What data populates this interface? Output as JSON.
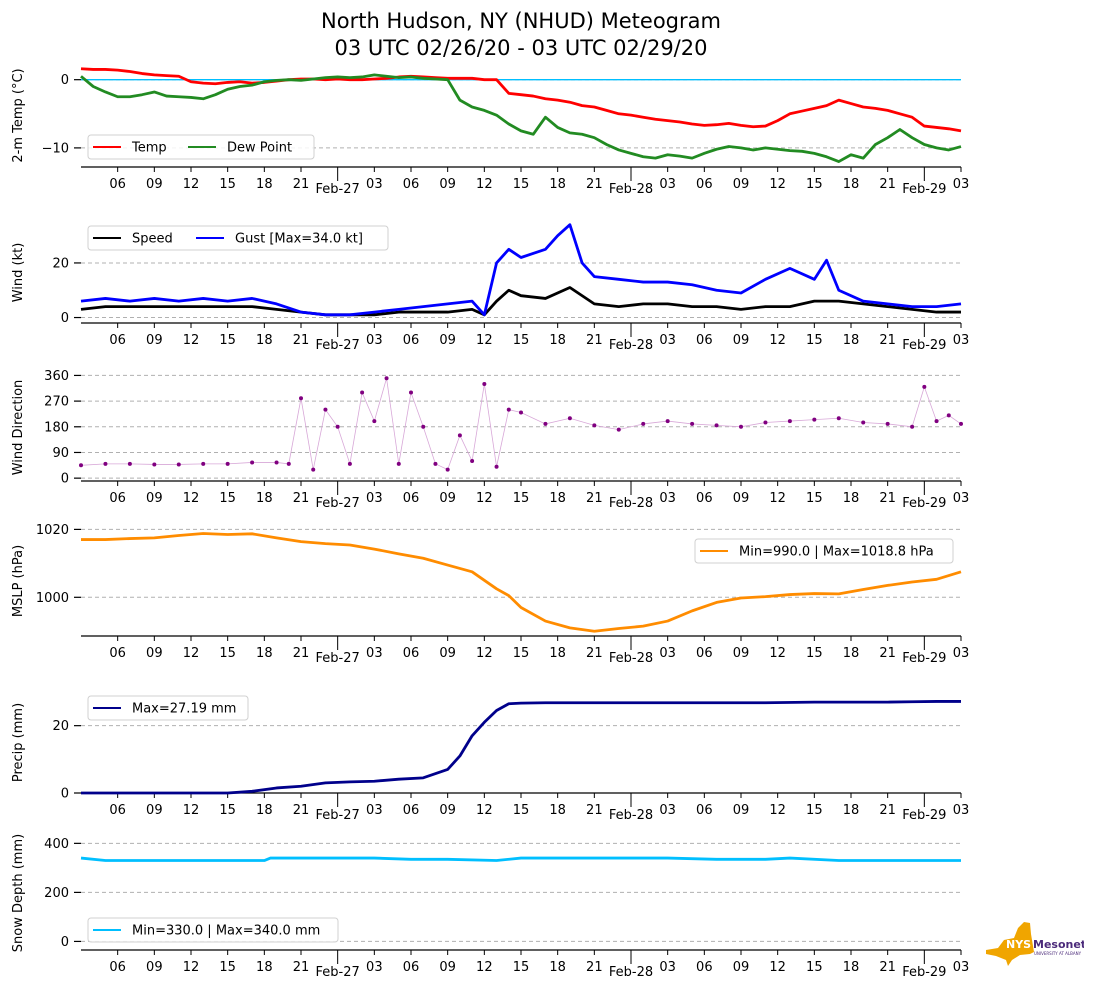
{
  "title_line1": "North Hudson, NY (NHUD) Meteogram",
  "title_line2": "03 UTC 02/26/20 - 03 UTC 02/29/20",
  "logo": {
    "text_primary": "NYS",
    "text_secondary": "Mesonet",
    "subtext": "UNIVERSITY AT ALBANY",
    "color_gold": "#f0a500",
    "color_purple": "#4b2a7a"
  },
  "chart_data": [
    {
      "type": "line",
      "ylabel": "2-m Temp ($^\\circ$C)",
      "ylabel_display": "2-m Temp (°C)",
      "yticks": [
        0,
        -10
      ],
      "ylim": [
        -12.8,
        2.3
      ],
      "grid": "horizontal-dashed",
      "legend": "lower-left",
      "hline": {
        "value": 0,
        "color": "#00bfff"
      },
      "series": [
        {
          "name": "Temp",
          "color": "#ff0000",
          "x_hours": [
            0,
            1,
            2,
            3,
            4,
            5,
            6,
            7,
            8,
            9,
            10,
            11,
            12,
            13,
            14,
            15,
            16,
            17,
            18,
            19,
            20,
            21,
            22,
            23,
            24,
            25,
            26,
            27,
            28,
            29,
            30,
            31,
            32,
            33,
            34,
            35,
            36,
            37,
            38,
            39,
            40,
            41,
            42,
            43,
            44,
            45,
            46,
            47,
            48,
            49,
            50,
            51,
            52,
            53,
            54,
            55,
            56,
            57,
            58,
            59,
            60,
            61,
            62,
            63,
            64,
            65,
            66,
            67,
            68,
            69,
            70,
            71,
            72
          ],
          "values": [
            1.6,
            1.5,
            1.5,
            1.4,
            1.2,
            0.9,
            0.7,
            0.6,
            0.5,
            -0.3,
            -0.5,
            -0.6,
            -0.4,
            -0.3,
            -0.5,
            -0.4,
            -0.2,
            0.0,
            0.1,
            0.1,
            0.0,
            0.1,
            0.0,
            0.0,
            0.1,
            0.2,
            0.4,
            0.5,
            0.4,
            0.3,
            0.2,
            0.2,
            0.2,
            0.0,
            0.0,
            -2.0,
            -2.2,
            -2.4,
            -2.8,
            -3.0,
            -3.3,
            -3.8,
            -4.0,
            -4.5,
            -5.0,
            -5.2,
            -5.5,
            -5.8,
            -6.0,
            -6.2,
            -6.5,
            -6.7,
            -6.6,
            -6.4,
            -6.7,
            -6.9,
            -6.8,
            -6.0,
            -5.0,
            -4.6,
            -4.2,
            -3.8,
            -3.0,
            -3.5,
            -4.0,
            -4.2,
            -4.5,
            -5.0,
            -5.5,
            -6.8,
            -7.0,
            -7.2,
            -7.5
          ]
        },
        {
          "name": "Dew Point",
          "color": "#228b22",
          "x_hours": [
            0,
            1,
            2,
            3,
            4,
            5,
            6,
            7,
            8,
            9,
            10,
            11,
            12,
            13,
            14,
            15,
            16,
            17,
            18,
            19,
            20,
            21,
            22,
            23,
            24,
            25,
            26,
            27,
            28,
            29,
            30,
            31,
            32,
            33,
            34,
            35,
            36,
            37,
            38,
            39,
            40,
            41,
            42,
            43,
            44,
            45,
            46,
            47,
            48,
            49,
            50,
            51,
            52,
            53,
            54,
            55,
            56,
            57,
            58,
            59,
            60,
            61,
            62,
            63,
            64,
            65,
            66,
            67,
            68,
            69,
            70,
            71,
            72
          ],
          "values": [
            0.5,
            -1.0,
            -1.8,
            -2.5,
            -2.5,
            -2.2,
            -1.8,
            -2.4,
            -2.5,
            -2.6,
            -2.8,
            -2.2,
            -1.4,
            -1.0,
            -0.8,
            -0.3,
            -0.1,
            0.0,
            -0.1,
            0.1,
            0.3,
            0.4,
            0.3,
            0.4,
            0.7,
            0.5,
            0.3,
            0.4,
            0.2,
            0.1,
            0.0,
            -3.0,
            -4.0,
            -4.5,
            -5.2,
            -6.5,
            -7.5,
            -8.0,
            -5.5,
            -7.0,
            -7.8,
            -8.0,
            -8.5,
            -9.5,
            -10.3,
            -10.8,
            -11.3,
            -11.5,
            -11.0,
            -11.2,
            -11.5,
            -10.8,
            -10.2,
            -9.8,
            -10.0,
            -10.3,
            -10.0,
            -10.2,
            -10.4,
            -10.5,
            -10.8,
            -11.3,
            -12.0,
            -11.0,
            -11.5,
            -9.5,
            -8.5,
            -7.3,
            -8.5,
            -9.5,
            -10.0,
            -10.3,
            -9.8
          ]
        }
      ]
    },
    {
      "type": "line",
      "ylabel": "Wind (kt)",
      "yticks": [
        0,
        20
      ],
      "ylim": [
        -2,
        35
      ],
      "grid": "horizontal-dashed",
      "legend": "upper-left",
      "series": [
        {
          "name": "Speed",
          "color": "#000000",
          "x_hours": [
            0,
            2,
            4,
            6,
            8,
            10,
            12,
            14,
            16,
            18,
            20,
            22,
            24,
            26,
            28,
            30,
            32,
            33,
            34,
            35,
            36,
            38,
            40,
            42,
            44,
            46,
            48,
            50,
            52,
            54,
            56,
            58,
            60,
            62,
            64,
            66,
            68,
            70,
            72
          ],
          "values": [
            3,
            4,
            4,
            4,
            4,
            4,
            4,
            4,
            3,
            2,
            1,
            1,
            1,
            2,
            2,
            2,
            3,
            1,
            6,
            10,
            8,
            7,
            11,
            5,
            4,
            5,
            5,
            4,
            4,
            3,
            4,
            4,
            6,
            6,
            5,
            4,
            3,
            2,
            2
          ]
        },
        {
          "name": "Gust [Max=34.0 kt]",
          "color": "#0000ff",
          "x_hours": [
            0,
            2,
            4,
            6,
            8,
            10,
            12,
            14,
            16,
            18,
            20,
            22,
            24,
            26,
            28,
            30,
            32,
            33,
            34,
            35,
            36,
            38,
            39,
            40,
            41,
            42,
            44,
            46,
            48,
            50,
            52,
            54,
            56,
            58,
            60,
            61,
            62,
            64,
            66,
            68,
            70,
            72
          ],
          "values": [
            6,
            7,
            6,
            7,
            6,
            7,
            6,
            7,
            5,
            2,
            1,
            1,
            2,
            3,
            4,
            5,
            6,
            1,
            20,
            25,
            22,
            25,
            30,
            34,
            20,
            15,
            14,
            13,
            13,
            12,
            10,
            9,
            14,
            18,
            14,
            21,
            10,
            6,
            5,
            4,
            4,
            5
          ]
        }
      ]
    },
    {
      "type": "scatter",
      "ylabel": "Wind Direction",
      "yticks": [
        0,
        90,
        180,
        270,
        360
      ],
      "ylim": [
        -10,
        365
      ],
      "grid": "horizontal-dashed",
      "series": [
        {
          "name": "Wind Direction",
          "color": "#800080",
          "x_hours": [
            0,
            2,
            4,
            6,
            8,
            10,
            12,
            14,
            16,
            17,
            18,
            19,
            20,
            21,
            22,
            23,
            24,
            25,
            26,
            27,
            28,
            29,
            30,
            31,
            32,
            33,
            34,
            35,
            36,
            38,
            40,
            42,
            44,
            46,
            48,
            50,
            52,
            54,
            56,
            58,
            60,
            62,
            64,
            66,
            68,
            69,
            70,
            71,
            72
          ],
          "values": [
            45,
            50,
            50,
            48,
            48,
            50,
            50,
            55,
            55,
            50,
            280,
            30,
            240,
            180,
            50,
            300,
            200,
            350,
            50,
            300,
            180,
            50,
            30,
            150,
            60,
            330,
            40,
            240,
            230,
            190,
            210,
            185,
            170,
            190,
            200,
            190,
            185,
            180,
            195,
            200,
            205,
            210,
            195,
            190,
            180,
            320,
            200,
            220,
            190
          ]
        }
      ]
    },
    {
      "type": "line",
      "ylabel": "MSLP (hPa)",
      "yticks": [
        1000,
        1020
      ],
      "ylim": [
        988.6,
        1021
      ],
      "grid": "horizontal-dashed",
      "legend": "upper-right",
      "series": [
        {
          "name": "Min=990.0 | Max=1018.8 hPa",
          "color": "#ff8c00",
          "x_hours": [
            0,
            2,
            4,
            6,
            8,
            10,
            12,
            14,
            16,
            18,
            20,
            22,
            24,
            26,
            28,
            30,
            32,
            34,
            35,
            36,
            38,
            40,
            42,
            44,
            46,
            48,
            50,
            52,
            54,
            56,
            58,
            60,
            62,
            64,
            66,
            68,
            70,
            72
          ],
          "values": [
            1017,
            1017,
            1017.3,
            1017.5,
            1018.2,
            1018.8,
            1018.5,
            1018.7,
            1017.5,
            1016.4,
            1015.8,
            1015.4,
            1014.2,
            1012.8,
            1011.5,
            1009.5,
            1007.5,
            1002.5,
            1000.5,
            997,
            993,
            991,
            990,
            990.8,
            991.5,
            993,
            996,
            998.5,
            999.8,
            1000.2,
            1000.8,
            1001.1,
            1001,
            1002.3,
            1003.5,
            1004.5,
            1005.3,
            1007.5
          ]
        }
      ]
    },
    {
      "type": "line",
      "ylabel": "Precip (mm)",
      "yticks": [
        0,
        20
      ],
      "ylim": [
        0,
        30
      ],
      "grid": "horizontal-dashed",
      "legend": "upper-left",
      "series": [
        {
          "name": "Max=27.19 mm",
          "color": "#00008b",
          "x_hours": [
            0,
            12,
            14,
            16,
            18,
            20,
            22,
            24,
            26,
            28,
            30,
            31,
            32,
            33,
            34,
            35,
            36,
            38,
            40,
            42,
            48,
            56,
            60,
            64,
            66,
            68,
            70,
            72
          ],
          "values": [
            0,
            0,
            0.5,
            1.5,
            2,
            3,
            3.3,
            3.5,
            4.1,
            4.5,
            7,
            11,
            17,
            21,
            24.5,
            26.5,
            26.7,
            26.8,
            26.8,
            26.8,
            26.8,
            26.8,
            27,
            27,
            27,
            27.1,
            27.19,
            27.19
          ]
        }
      ]
    },
    {
      "type": "line",
      "ylabel": "Snow Depth (mm)",
      "yticks": [
        0,
        200,
        400
      ],
      "ylim": [
        -35,
        430
      ],
      "grid": "horizontal-dashed",
      "legend": "lower-left",
      "series": [
        {
          "name": "Min=330.0 | Max=340.0 mm",
          "color": "#00bfff",
          "x_hours": [
            0,
            2,
            4,
            8,
            12,
            15,
            15.5,
            20,
            24,
            27,
            30,
            34,
            36,
            40,
            44,
            48,
            52,
            56,
            58,
            62,
            66,
            72
          ],
          "values": [
            340,
            330,
            330,
            330,
            330,
            330,
            340,
            340,
            340,
            335,
            335,
            330,
            340,
            340,
            340,
            340,
            335,
            335,
            340,
            330,
            330,
            330
          ]
        }
      ]
    }
  ],
  "xaxis": {
    "hour_labels": [
      "06",
      "09",
      "12",
      "15",
      "18",
      "21",
      "03",
      "06",
      "09",
      "12",
      "15",
      "18",
      "21",
      "03",
      "06",
      "09",
      "12",
      "15",
      "18",
      "21",
      "03"
    ],
    "hour_label_offsets": [
      3,
      6,
      9,
      12,
      15,
      18,
      24,
      27,
      30,
      33,
      36,
      39,
      42,
      48,
      51,
      54,
      57,
      60,
      63,
      66,
      72
    ],
    "day_labels": [
      "Feb-27",
      "Feb-28",
      "Feb-29"
    ],
    "day_offsets": [
      21,
      45,
      69
    ],
    "range_hours": [
      0,
      72
    ]
  }
}
